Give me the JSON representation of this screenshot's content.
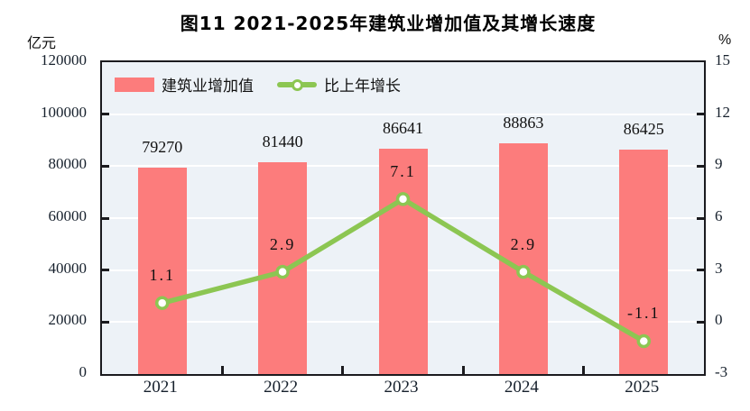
{
  "title": "图11  2021-2025年建筑业增加值及其增长速度",
  "left_axis": {
    "unit": "亿元",
    "ticks": [
      "120000",
      "100000",
      "80000",
      "60000",
      "40000",
      "20000",
      "0"
    ],
    "min": 0,
    "max": 120000
  },
  "right_axis": {
    "unit": "%",
    "ticks": [
      "15",
      "12",
      "9",
      "6",
      "3",
      "0",
      "-3"
    ],
    "min": -3,
    "max": 15
  },
  "legend": {
    "items": [
      {
        "label": "建筑业增加值",
        "type": "bar",
        "color": "#FC7C7C"
      },
      {
        "label": "比上年增长",
        "type": "line",
        "color": "#8CC652"
      }
    ]
  },
  "chart_data": {
    "type": "bar+line",
    "title": "图11  2021-2025年建筑业增加值及其增长速度",
    "categories": [
      "2021",
      "2022",
      "2023",
      "2024",
      "2025"
    ],
    "series": [
      {
        "name": "建筑业增加值",
        "type": "bar",
        "axis": "left",
        "unit": "亿元",
        "values": [
          79270,
          81440,
          86641,
          88863,
          86425
        ],
        "labels": [
          "79270",
          "81440",
          "86641",
          "88863",
          "86425"
        ],
        "color": "#FC7C7C"
      },
      {
        "name": "比上年增长",
        "type": "line",
        "axis": "right",
        "unit": "%",
        "values": [
          1.1,
          2.9,
          7.1,
          2.9,
          -1.1
        ],
        "labels": [
          "1.1",
          "2.9",
          "7.1",
          "2.9",
          "-1.1"
        ],
        "color": "#8CC652",
        "marker": {
          "shape": "circle",
          "fill": "#ffffff",
          "stroke": "#8CC652"
        }
      }
    ],
    "left_ylim": [
      0,
      120000
    ],
    "right_ylim": [
      -3,
      15
    ],
    "grid": true,
    "gridline_color": "#ffffff",
    "plot_background": "#EDF2F7",
    "frame_color": "#1b1b1f",
    "legend_position": "top-left-inside"
  }
}
